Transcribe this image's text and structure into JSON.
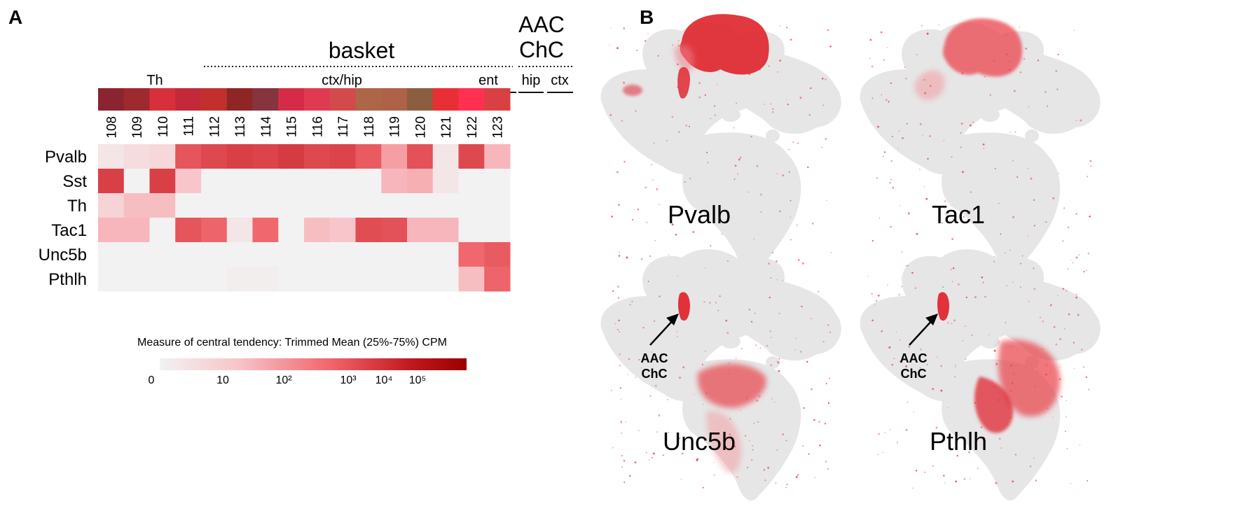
{
  "panels": {
    "a_label": "A",
    "b_label": "B"
  },
  "chart_data": [
    {
      "type": "heatmap",
      "title": "",
      "groups": {
        "th": "Th",
        "basket": "basket",
        "aac_line1": "AAC",
        "aac_line2": "ChC",
        "ctx_hip": "ctx/hip",
        "ent": "ent",
        "hip": "hip",
        "ctx": "ctx"
      },
      "clusters": [
        "108",
        "109",
        "110",
        "111",
        "112",
        "113",
        "114",
        "115",
        "116",
        "117",
        "118",
        "119",
        "120",
        "121",
        "122",
        "123"
      ],
      "cluster_colors": [
        "#8a2430",
        "#9e2a30",
        "#d8303a",
        "#c22a3a",
        "#c2302e",
        "#8e2626",
        "#86343e",
        "#d62b48",
        "#e03a52",
        "#d24a4c",
        "#ad6648",
        "#ae6248",
        "#8c5e40",
        "#e83034",
        "#ff3050",
        "#d84044"
      ],
      "genes": [
        "Pvalb",
        "Sst",
        "Th",
        "Tac1",
        "Unc5b",
        "Pthlh"
      ],
      "log10_cpm": [
        [
          0.3,
          0.5,
          0.6,
          2.6,
          2.9,
          3.1,
          3.0,
          3.2,
          2.9,
          3.0,
          2.5,
          1.5,
          2.7,
          0.3,
          2.9,
          1.2
        ],
        [
          3.1,
          0.0,
          3.1,
          1.0,
          0.0,
          0.0,
          0.0,
          0.0,
          0.0,
          0.0,
          0.0,
          1.2,
          1.3,
          0.3,
          0.0,
          0.0
        ],
        [
          0.7,
          1.1,
          1.1,
          0.0,
          0.0,
          0.0,
          0.0,
          0.0,
          0.0,
          0.0,
          0.0,
          0.0,
          0.0,
          0.0,
          0.0,
          0.0
        ],
        [
          1.2,
          1.2,
          0.0,
          2.6,
          2.3,
          0.3,
          2.2,
          0.0,
          1.1,
          1.0,
          2.8,
          2.7,
          1.2,
          1.2,
          0.0,
          0.0
        ],
        [
          0.0,
          0.0,
          0.0,
          0.0,
          0.0,
          0.0,
          0.0,
          0.0,
          0.0,
          0.0,
          0.0,
          0.0,
          0.0,
          0.0,
          2.2,
          2.5
        ],
        [
          0.0,
          0.0,
          0.0,
          0.0,
          0.0,
          0.1,
          0.1,
          0.0,
          0.0,
          0.0,
          0.0,
          0.0,
          0.0,
          0.0,
          1.1,
          2.3
        ]
      ],
      "color_scale": {
        "title": "Measure of central tendency: Trimmed Mean (25%-75%) CPM",
        "ticks": [
          "0",
          "10",
          "10²",
          "10³",
          "10⁴",
          "10⁵"
        ],
        "tick_values_log10": [
          0,
          1,
          2,
          3,
          4,
          5
        ],
        "colors": [
          "#f2f2f2",
          "#f8c6ca",
          "#f0686e",
          "#c0181e",
          "#9a0000"
        ]
      }
    },
    {
      "type": "scatter",
      "panels": [
        {
          "gene": "Pvalb"
        },
        {
          "gene": "Tac1"
        },
        {
          "gene": "Unc5b",
          "annotation_line1": "AAC",
          "annotation_line2": "ChC"
        },
        {
          "gene": "Pthlh",
          "annotation_line1": "AAC",
          "annotation_line2": "ChC"
        }
      ],
      "background_color": "#e6e6e6",
      "highlight_color": "#e02830"
    }
  ]
}
